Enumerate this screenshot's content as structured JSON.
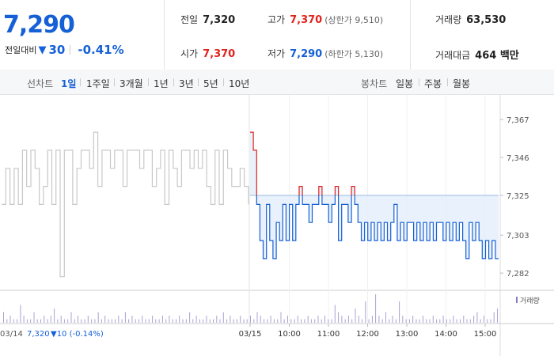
{
  "header": {
    "current_price": "7,290",
    "change_label": "전일대비",
    "change_arrow": "▼",
    "change_amount": "30",
    "change_percent": "-0.41%",
    "prev_close_label": "전일",
    "prev_close": "7,320",
    "open_label": "시가",
    "open": "7,370",
    "high_label": "고가",
    "high": "7,370",
    "upper_limit": "(상한가 9,510)",
    "low_label": "저가",
    "low": "7,290",
    "lower_limit": "(하한가 5,130)",
    "volume_label": "거래량",
    "volume": "63,530",
    "value_label": "거래대금",
    "value": "464 백만"
  },
  "line_tabs": {
    "label": "선차트",
    "items": [
      "1일",
      "1주일",
      "3개월",
      "1년",
      "3년",
      "5년",
      "10년"
    ],
    "active": "1일"
  },
  "candle_tabs": {
    "label": "봉차트",
    "items": [
      "일봉",
      "주봉",
      "월봉"
    ]
  },
  "colors": {
    "up": "#e0231c",
    "down": "#1560d6",
    "prev_day": "#c8c8c8",
    "fill": "#e4eefb",
    "volume_bar": "#8a78c0"
  },
  "chart_data": {
    "type": "line",
    "title": "",
    "ylim": [
      7279,
      7371
    ],
    "y_ticks": [
      "7,367",
      "7,346",
      "7,325",
      "7,303",
      "7,282"
    ],
    "y_tick_values": [
      7367,
      7346,
      7325,
      7303,
      7282
    ],
    "reference_value": 7325,
    "prev_day_label": "03/14",
    "prev_day_close": "7,320",
    "prev_day_change": "▼10 (-0.14%)",
    "x_ticks": [
      "03/15",
      "10:00",
      "11:00",
      "12:00",
      "13:00",
      "14:00",
      "15:00"
    ],
    "x_tick_positions": [
      0,
      1,
      2,
      3,
      4,
      5,
      6
    ],
    "volume_legend": "거래량",
    "series": [
      {
        "role": "prev_day",
        "values": [
          7320,
          7340,
          7320,
          7340,
          7320,
          7350,
          7330,
          7350,
          7340,
          7320,
          7330,
          7350,
          7320,
          7350,
          7280,
          7350,
          7350,
          7320,
          7340,
          7350,
          7350,
          7340,
          7360,
          7330,
          7350,
          7350,
          7340,
          7350,
          7350,
          7330,
          7350,
          7350,
          7350,
          7340,
          7350,
          7350,
          7330,
          7340,
          7350,
          7320,
          7350,
          7340,
          7330,
          7350,
          7350,
          7340,
          7350,
          7340,
          7350,
          7330,
          7320,
          7350,
          7320,
          7350,
          7340,
          7330,
          7330,
          7340,
          7330,
          7320
        ]
      },
      {
        "role": "today",
        "values": [
          7360,
          7350,
          7320,
          7300,
          7290,
          7320,
          7300,
          7290,
          7310,
          7300,
          7320,
          7300,
          7320,
          7300,
          7320,
          7330,
          7320,
          7320,
          7310,
          7320,
          7320,
          7330,
          7320,
          7320,
          7310,
          7320,
          7330,
          7300,
          7320,
          7320,
          7310,
          7330,
          7320,
          7310,
          7300,
          7310,
          7300,
          7310,
          7300,
          7310,
          7300,
          7310,
          7300,
          7310,
          7320,
          7300,
          7310,
          7300,
          7310,
          7310,
          7300,
          7310,
          7300,
          7310,
          7300,
          7310,
          7300,
          7310,
          7310,
          7300,
          7310,
          7300,
          7310,
          7300,
          7310,
          7300,
          7290,
          7310,
          7300,
          7310,
          7300,
          7290,
          7300,
          7290,
          7300,
          7290,
          7290
        ]
      }
    ],
    "volume": [
      3,
      1,
      2,
      1,
      1,
      5,
      2,
      1,
      1,
      3,
      1,
      1,
      2,
      1,
      2,
      4,
      1,
      2,
      1,
      1,
      3,
      1,
      2,
      1,
      1,
      2,
      1,
      1,
      3,
      1,
      2,
      1,
      1,
      1,
      2,
      1,
      3,
      1,
      2,
      1,
      1,
      2,
      1,
      1,
      2,
      1,
      1,
      2,
      1,
      2,
      1,
      1,
      2,
      1,
      1,
      3,
      1,
      2,
      1,
      1,
      2,
      1,
      1,
      2,
      1,
      3,
      1,
      2,
      1,
      1,
      2,
      1,
      1,
      2,
      1,
      3,
      2,
      1,
      1,
      2,
      1,
      1,
      3,
      1,
      2,
      1,
      1,
      2,
      1,
      1,
      2,
      1,
      1,
      2,
      1,
      2,
      1,
      1,
      5,
      3,
      2,
      1,
      2,
      1,
      4,
      2,
      1,
      6,
      1,
      2,
      8,
      2,
      1,
      3,
      1,
      2,
      1,
      6,
      2,
      1,
      1,
      2,
      1,
      1,
      2,
      1,
      1,
      2,
      1,
      1,
      2,
      1,
      1,
      2,
      1,
      1,
      2,
      1,
      1,
      2,
      3,
      1,
      2,
      1,
      1,
      3,
      4
    ]
  }
}
